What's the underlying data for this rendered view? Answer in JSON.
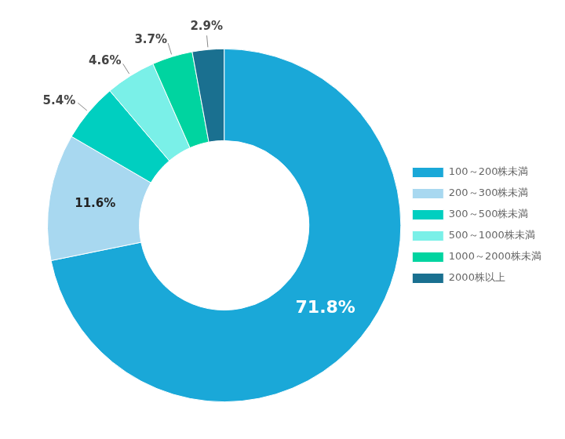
{
  "chart_data": {
    "type": "donut",
    "categories": [
      "100～200株未満",
      "200～300株未満",
      "300～500株未満",
      "500～1000株未満",
      "1000～2000株未満",
      "2000株以上"
    ],
    "values": [
      71.8,
      11.6,
      5.4,
      4.6,
      3.7,
      2.9
    ],
    "value_labels": [
      "71.8%",
      "11.6%",
      "5.4%",
      "4.6%",
      "3.7%",
      "2.9%"
    ],
    "colors": [
      "#1AA8D8",
      "#A8D8F0",
      "#00CFC0",
      "#7AF0E8",
      "#00D4A0",
      "#1A7090"
    ],
    "data_labels": true,
    "legend": "right"
  }
}
